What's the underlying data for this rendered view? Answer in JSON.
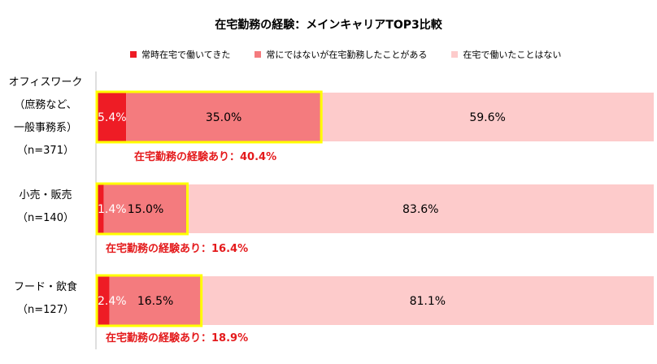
{
  "title": "在宅勤務の経験：メインキャリアTOP3比較",
  "colors": {
    "always": "#ee1c25",
    "sometimes": "#f47b7e",
    "never": "#fdcbcb",
    "highlight": "#ffff00",
    "annotation": "#e41a1c"
  },
  "legend": [
    {
      "label": "常時在宅で働いてきた",
      "color_key": "always"
    },
    {
      "label": "常にではないが在宅勤務したことがある",
      "color_key": "sometimes"
    },
    {
      "label": "在宅で働いたことはない",
      "color_key": "never"
    }
  ],
  "categories": [
    {
      "lines": [
        "オフィスワーク",
        "（庶務など、",
        "一般事務系）",
        "（n=371）"
      ],
      "annotation": "在宅勤務の経験あり：40.4%"
    },
    {
      "lines": [
        "小売・販売",
        "（n=140）"
      ],
      "annotation": "在宅勤務の経験あり：16.4%"
    },
    {
      "lines": [
        "フード・飲食",
        "（n=127）"
      ],
      "annotation": "在宅勤務の経験あり：18.9%"
    }
  ],
  "chart_data": {
    "type": "bar",
    "orientation": "horizontal",
    "stacked": true,
    "title": "在宅勤務の経験：メインキャリアTOP3比較",
    "categories": [
      "オフィスワーク（庶務など、一般事務系）（n=371）",
      "小売・販売（n=140）",
      "フード・飲食（n=127）"
    ],
    "series": [
      {
        "name": "常時在宅で働いてきた",
        "values": [
          5.4,
          1.4,
          2.4
        ],
        "labels": [
          "5.4%",
          "1.4%",
          "2.4%"
        ]
      },
      {
        "name": "常にではないが在宅勤務したことがある",
        "values": [
          35.0,
          15.0,
          16.5
        ],
        "labels": [
          "35.0%",
          "15.0%",
          "16.5%"
        ]
      },
      {
        "name": "在宅で働いたことはない",
        "values": [
          59.6,
          83.6,
          81.1
        ],
        "labels": [
          "59.6%",
          "83.6%",
          "81.1%"
        ]
      }
    ],
    "experience_totals": [
      40.4,
      16.4,
      18.9
    ],
    "xlim": [
      0,
      100
    ],
    "grid": false,
    "legend_position": "top"
  }
}
